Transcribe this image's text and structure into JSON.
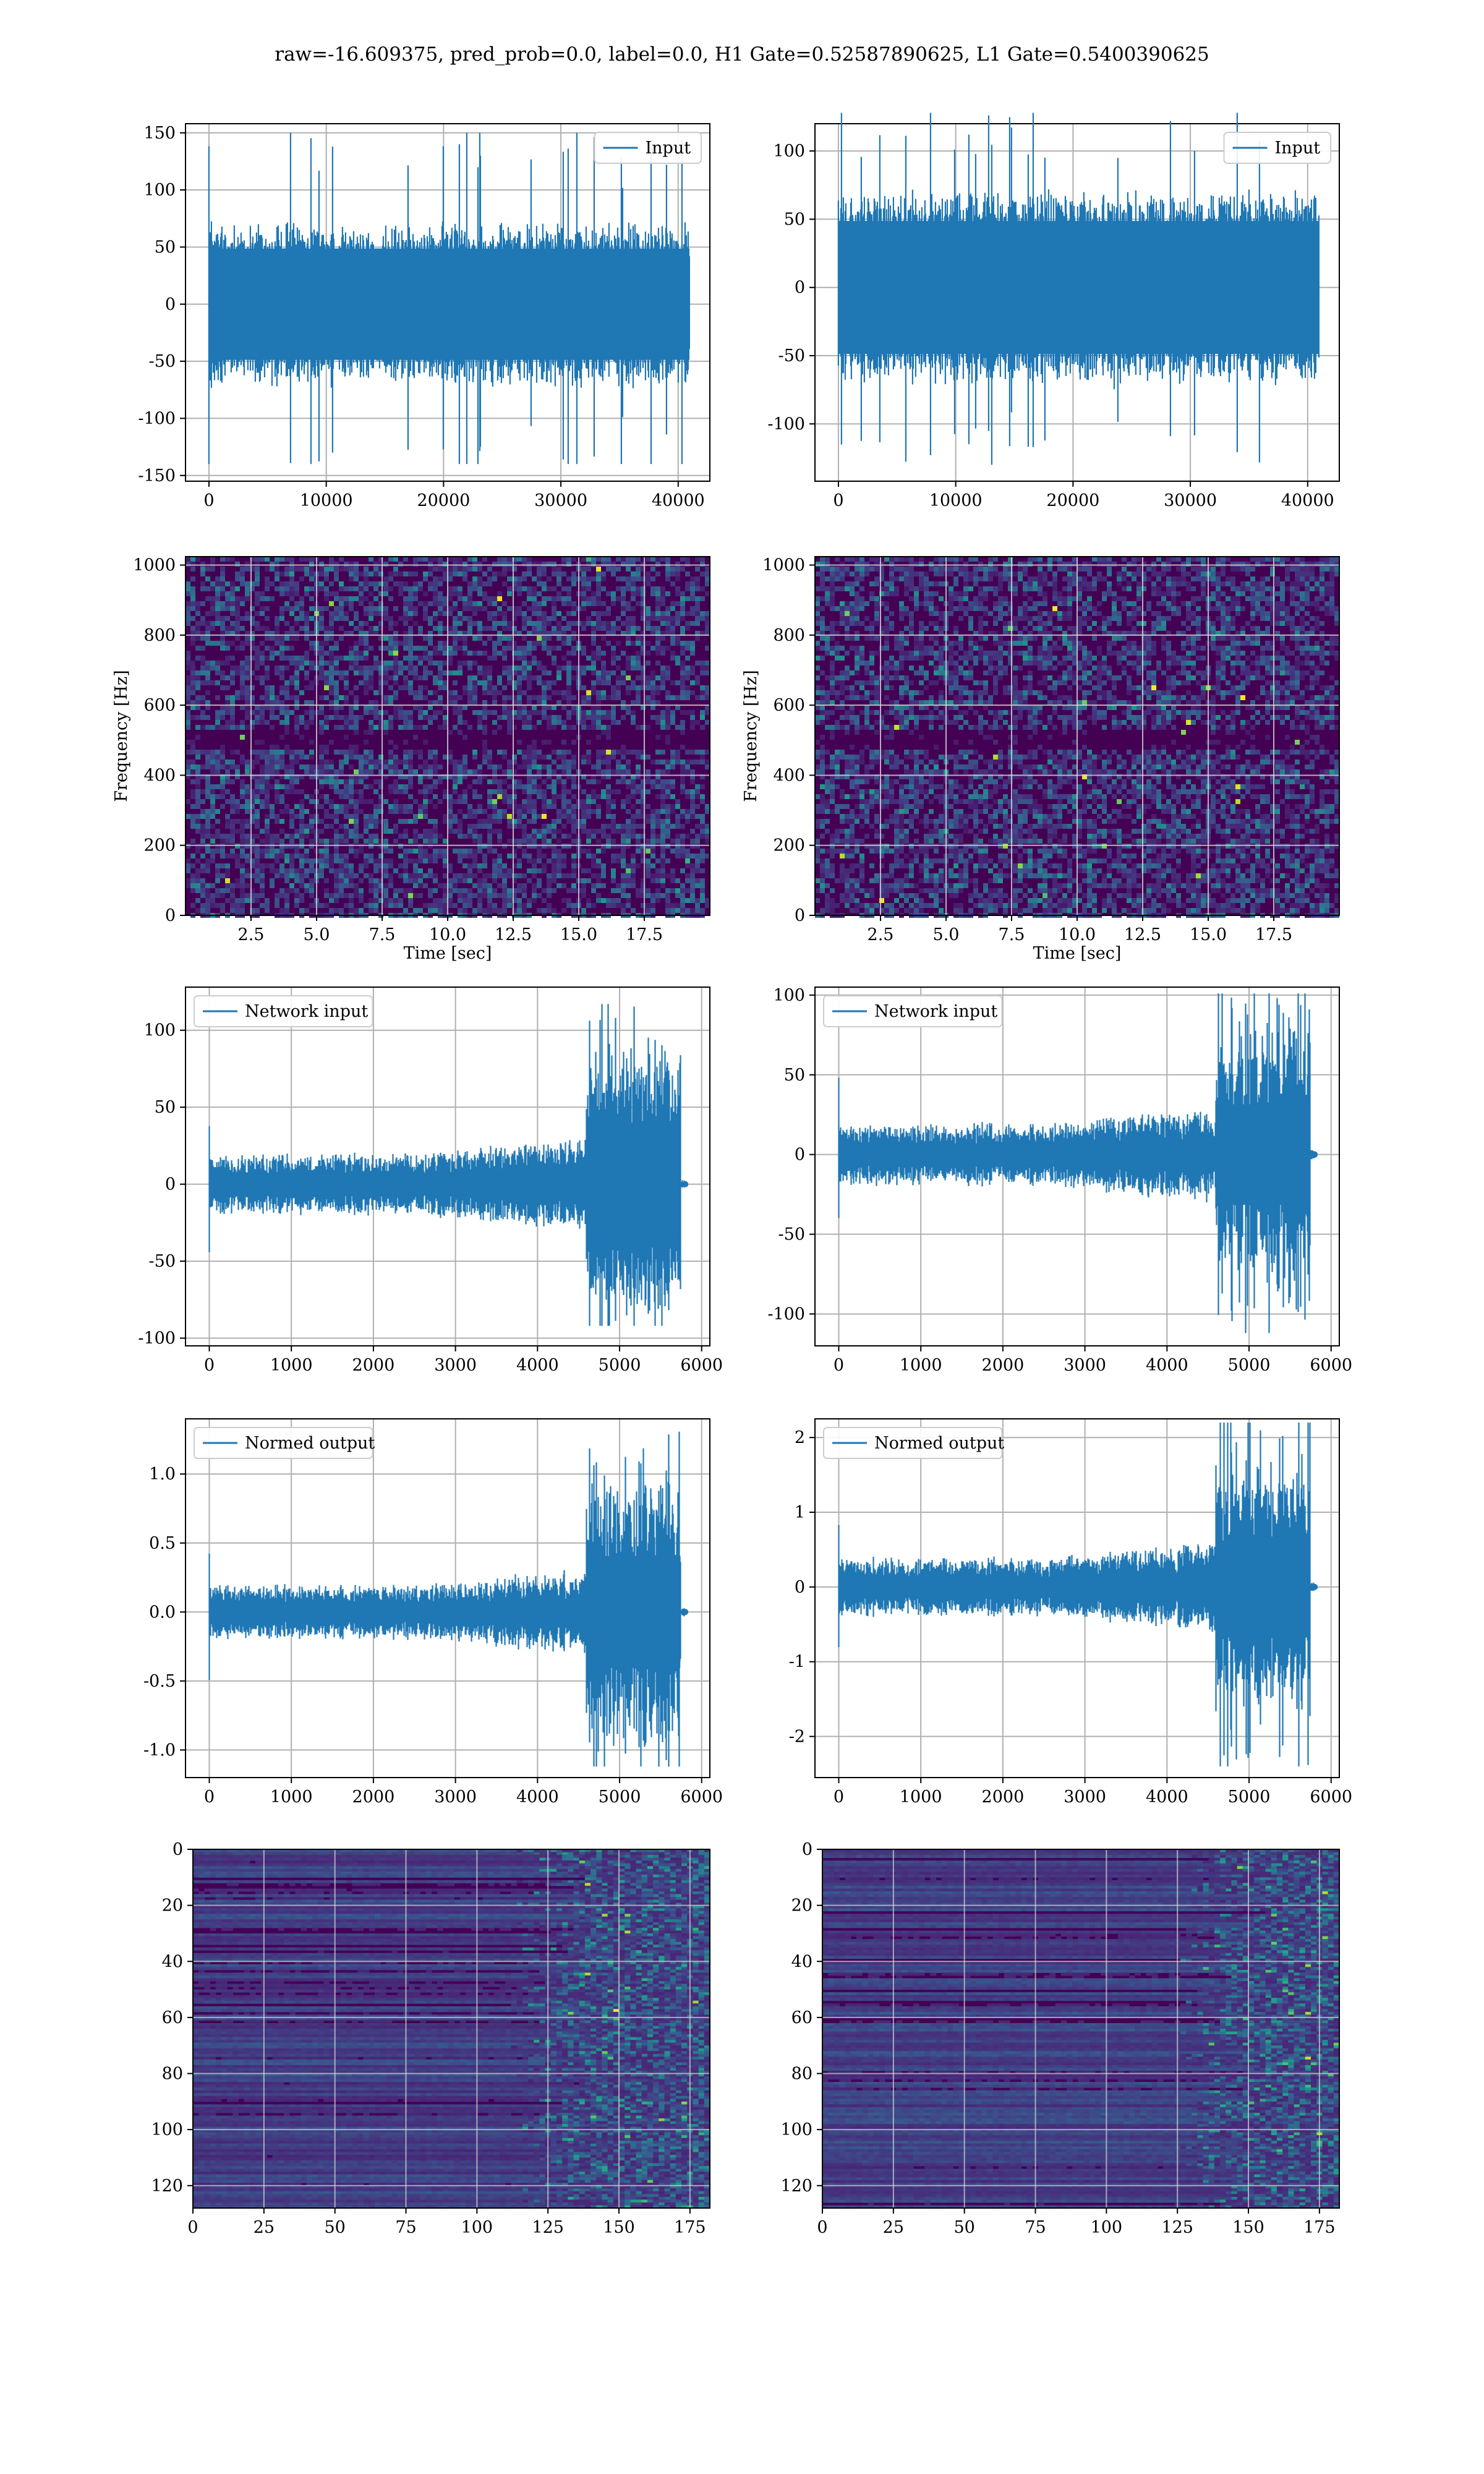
{
  "figure": {
    "title": "raw=-16.609375, pred_prob=0.0, label=0.0, H1 Gate=0.52587890625, L1 Gate=0.5400390625"
  },
  "colors": {
    "series": "#1f77b4",
    "grid": "#b0b0b0",
    "viridis": [
      "#440154",
      "#482878",
      "#3e4989",
      "#31688e",
      "#26828e",
      "#1f9e89",
      "#35b779",
      "#6ece58",
      "#b5de2b",
      "#fde725"
    ]
  },
  "chart_data": [
    {
      "id": "input_h1",
      "type": "line",
      "title": "",
      "xlabel": "",
      "ylabel": "",
      "xlim": [
        -2000,
        42700
      ],
      "ylim": [
        -155,
        158
      ],
      "xticks": [
        0,
        10000,
        20000,
        30000,
        40000
      ],
      "yticks": [
        -150,
        -100,
        -50,
        0,
        50,
        100,
        150
      ],
      "grid": true,
      "legend": "upper right",
      "series": [
        {
          "name": "Input",
          "x_range": [
            0,
            40960
          ],
          "summary": {
            "typical_band": [
              -65,
              65
            ],
            "max": 150,
            "min": -140
          }
        }
      ]
    },
    {
      "id": "input_l1",
      "type": "line",
      "title": "",
      "xlabel": "",
      "ylabel": "",
      "xlim": [
        -2000,
        42700
      ],
      "ylim": [
        -142,
        120
      ],
      "xticks": [
        0,
        10000,
        20000,
        30000,
        40000
      ],
      "yticks": [
        -100,
        -50,
        0,
        50,
        100
      ],
      "grid": true,
      "legend": "upper right",
      "series": [
        {
          "name": "Input",
          "x_range": [
            0,
            40960
          ],
          "summary": {
            "typical_band": [
              -65,
              65
            ],
            "max": 128,
            "min": -130
          }
        }
      ]
    },
    {
      "id": "spec_h1",
      "type": "heatmap",
      "xlabel": "Time [sec]",
      "ylabel": "Frequency [Hz]",
      "xlim": [
        0,
        20
      ],
      "ylim": [
        0,
        1024
      ],
      "xticks": [
        2.5,
        5.0,
        7.5,
        10.0,
        12.5,
        15.0,
        17.5
      ],
      "yticks": [
        0,
        200,
        400,
        600,
        800,
        1000
      ],
      "grid": true,
      "colormap": "viridis"
    },
    {
      "id": "spec_l1",
      "type": "heatmap",
      "xlabel": "Time [sec]",
      "ylabel": "Frequency [Hz]",
      "xlim": [
        0,
        20
      ],
      "ylim": [
        0,
        1024
      ],
      "xticks": [
        2.5,
        5.0,
        7.5,
        10.0,
        12.5,
        15.0,
        17.5
      ],
      "yticks": [
        0,
        200,
        400,
        600,
        800,
        1000
      ],
      "grid": true,
      "colormap": "viridis"
    },
    {
      "id": "net_h1",
      "type": "line",
      "title": "",
      "xlabel": "",
      "ylabel": "",
      "xlim": [
        -290,
        6100
      ],
      "ylim": [
        -105,
        128
      ],
      "xticks": [
        0,
        1000,
        2000,
        3000,
        4000,
        5000,
        6000
      ],
      "yticks": [
        -100,
        -50,
        0,
        50,
        100
      ],
      "grid": true,
      "legend": "upper left",
      "series": [
        {
          "name": "Network input",
          "x_range": [
            0,
            5800
          ],
          "summary": {
            "early_band": [
              -20,
              20
            ],
            "burst_start": 4600,
            "burst_end": 5750,
            "burst_band": [
              -80,
              80
            ],
            "max": 117,
            "min": -92
          }
        }
      ]
    },
    {
      "id": "net_l1",
      "type": "line",
      "title": "",
      "xlabel": "",
      "ylabel": "",
      "xlim": [
        -290,
        6100
      ],
      "ylim": [
        -120,
        105
      ],
      "xticks": [
        0,
        1000,
        2000,
        3000,
        4000,
        5000,
        6000
      ],
      "yticks": [
        -100,
        -50,
        0,
        50,
        100
      ],
      "grid": true,
      "legend": "upper left",
      "series": [
        {
          "name": "Network input",
          "x_range": [
            0,
            5800
          ],
          "summary": {
            "early_band": [
              -20,
              20
            ],
            "burst_start": 4600,
            "burst_end": 5750,
            "burst_band": [
              -70,
              70
            ],
            "max": 101,
            "min": -112
          }
        }
      ]
    },
    {
      "id": "norm_h1",
      "type": "line",
      "title": "",
      "xlabel": "",
      "ylabel": "",
      "xlim": [
        -290,
        6100
      ],
      "ylim": [
        -1.2,
        1.4
      ],
      "xticks": [
        0,
        1000,
        2000,
        3000,
        4000,
        5000,
        6000
      ],
      "yticks": [
        -1.0,
        -0.5,
        0.0,
        0.5,
        1.0
      ],
      "grid": true,
      "legend": "upper left",
      "series": [
        {
          "name": "Normed output",
          "x_range": [
            0,
            5800
          ],
          "summary": {
            "early_band": [
              -0.2,
              0.2
            ],
            "burst_start": 4600,
            "burst_end": 5750,
            "burst_band": [
              -0.9,
              0.9
            ],
            "max": 1.33,
            "min": -1.12
          }
        }
      ]
    },
    {
      "id": "norm_l1",
      "type": "line",
      "title": "",
      "xlabel": "",
      "ylabel": "",
      "xlim": [
        -290,
        6100
      ],
      "ylim": [
        -2.55,
        2.25
      ],
      "xticks": [
        0,
        1000,
        2000,
        3000,
        4000,
        5000,
        6000
      ],
      "yticks": [
        -2,
        -1,
        0,
        1,
        2
      ],
      "grid": true,
      "legend": "upper left",
      "series": [
        {
          "name": "Normed output",
          "x_range": [
            0,
            5800
          ],
          "summary": {
            "early_band": [
              -0.4,
              0.4
            ],
            "burst_start": 4600,
            "burst_end": 5750,
            "burst_band": [
              -1.5,
              1.5
            ],
            "max": 2.2,
            "min": -2.4
          }
        }
      ]
    },
    {
      "id": "feat_h1",
      "type": "heatmap",
      "xlim": [
        0,
        182
      ],
      "ylim": [
        128,
        0
      ],
      "xticks": [
        0,
        25,
        50,
        75,
        100,
        125,
        150,
        175
      ],
      "yticks": [
        0,
        20,
        40,
        60,
        80,
        100,
        120
      ],
      "grid": true,
      "colormap": "viridis"
    },
    {
      "id": "feat_l1",
      "type": "heatmap",
      "xlim": [
        0,
        182
      ],
      "ylim": [
        128,
        0
      ],
      "xticks": [
        0,
        25,
        50,
        75,
        100,
        125,
        150,
        175
      ],
      "yticks": [
        0,
        20,
        40,
        60,
        80,
        100,
        120
      ],
      "grid": true,
      "colormap": "viridis"
    }
  ]
}
